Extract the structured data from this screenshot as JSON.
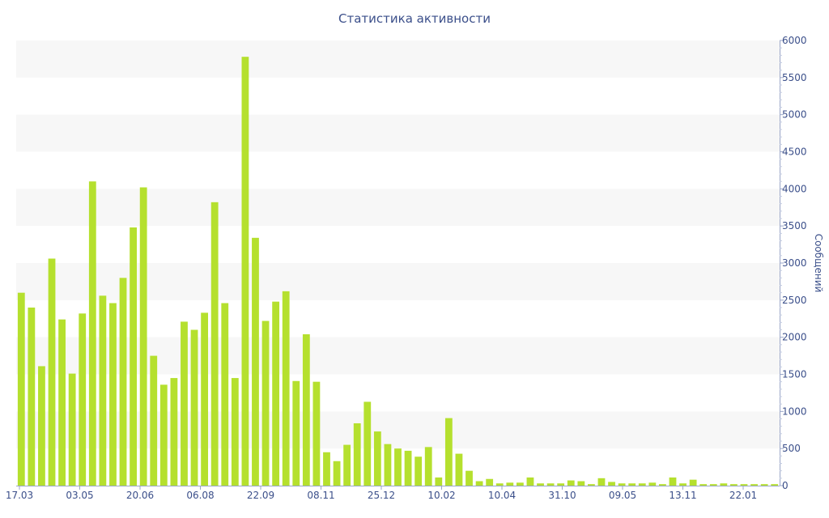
{
  "chart_data": {
    "type": "bar",
    "title": "Статистика активности",
    "xlabel": "",
    "ylabel": "Сообщений",
    "ylim": [
      0,
      6000
    ],
    "y_ticks": [
      0,
      500,
      1000,
      1500,
      2000,
      2500,
      3000,
      3500,
      4000,
      4500,
      5000,
      5500,
      6000
    ],
    "x_tick_labels": [
      "17.03",
      "03.05",
      "20.06",
      "06.08",
      "22.09",
      "08.11",
      "25.12",
      "10.02",
      "10.04",
      "31.10",
      "09.05",
      "13.11",
      "22.01"
    ],
    "grid": "horizontal bands",
    "bar_color": "#b5e02e",
    "values": [
      2600,
      2400,
      1610,
      3060,
      2240,
      1510,
      2320,
      4100,
      2560,
      2460,
      2800,
      3480,
      4020,
      1750,
      1360,
      1450,
      2210,
      2100,
      2330,
      3820,
      2460,
      1450,
      5780,
      3340,
      2220,
      2480,
      2620,
      1410,
      2040,
      1400,
      450,
      330,
      550,
      840,
      1130,
      730,
      560,
      500,
      470,
      390,
      520,
      110,
      910,
      430,
      200,
      60,
      90,
      30,
      40,
      40,
      110,
      30,
      30,
      30,
      70,
      60,
      20,
      100,
      50,
      30,
      30,
      30,
      40,
      20,
      110,
      30,
      80,
      20,
      20,
      30,
      20,
      20,
      20,
      20,
      20
    ]
  }
}
